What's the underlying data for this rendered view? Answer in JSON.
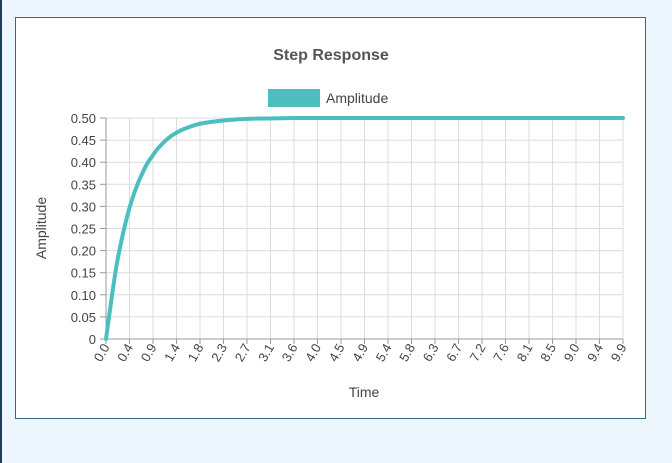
{
  "chart_data": {
    "type": "line",
    "title": "Step Response",
    "xlabel": "Time",
    "ylabel": "Amplitude",
    "legend": {
      "position": "top",
      "entries": [
        "Amplitude"
      ]
    },
    "grid": true,
    "xlim": [
      0,
      9.9
    ],
    "ylim": [
      0,
      0.5
    ],
    "x_ticks": [
      "0.0",
      "0.4",
      "0.9",
      "1.4",
      "1.8",
      "2.3",
      "2.7",
      "3.1",
      "3.6",
      "4.0",
      "4.5",
      "4.9",
      "5.4",
      "5.8",
      "6.3",
      "6.7",
      "7.2",
      "7.6",
      "8.1",
      "8.5",
      "9.0",
      "9.4",
      "9.9"
    ],
    "y_ticks": [
      "0",
      "0.05",
      "0.10",
      "0.15",
      "0.20",
      "0.25",
      "0.30",
      "0.35",
      "0.40",
      "0.45",
      "0.50"
    ],
    "series": [
      {
        "name": "Amplitude",
        "color": "#4bbfbf",
        "x": [
          0,
          0.1,
          0.2,
          0.3,
          0.4,
          0.5,
          0.6,
          0.7,
          0.8,
          0.9,
          1.0,
          1.2,
          1.4,
          1.6,
          1.8,
          2.0,
          2.3,
          2.7,
          3.1,
          3.6,
          4.0,
          4.5,
          5.0,
          6.0,
          7.0,
          8.0,
          9.0,
          9.9
        ],
        "y": [
          0,
          0.086,
          0.165,
          0.225,
          0.275,
          0.316,
          0.349,
          0.376,
          0.399,
          0.416,
          0.432,
          0.455,
          0.47,
          0.48,
          0.487,
          0.491,
          0.495,
          0.498,
          0.499,
          0.5,
          0.5,
          0.5,
          0.5,
          0.5,
          0.5,
          0.5,
          0.5,
          0.5
        ]
      }
    ]
  }
}
